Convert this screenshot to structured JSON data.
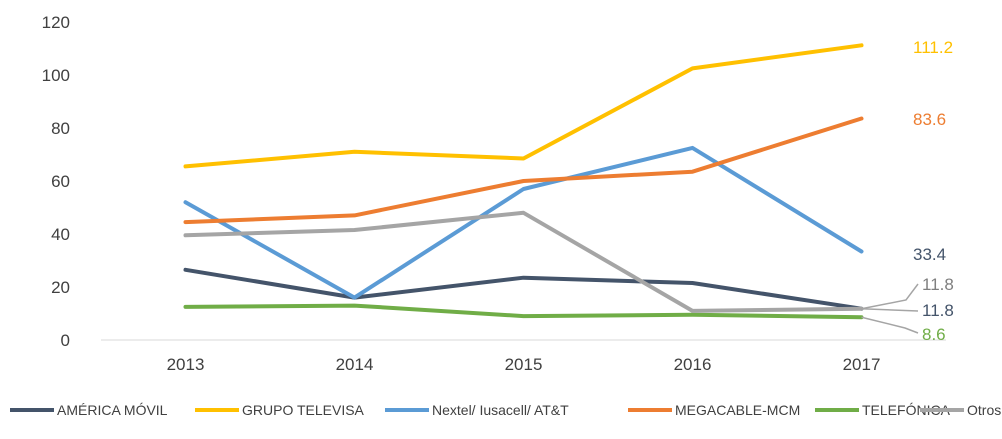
{
  "chart_data": {
    "type": "line",
    "title": "",
    "xlabel": "",
    "ylabel": "",
    "x": [
      "2013",
      "2014",
      "2015",
      "2016",
      "2017"
    ],
    "yticks": [
      0,
      20,
      40,
      60,
      80,
      100,
      120
    ],
    "ylim": [
      0,
      120
    ],
    "grid": false,
    "legend_position": "bottom",
    "series": [
      {
        "name": "AMÉRICA MÓVIL",
        "color": "#44546A",
        "values": [
          26.5,
          16,
          23.5,
          21.5,
          11.8
        ],
        "end_label": "11.8",
        "end_label_color": "#44546A"
      },
      {
        "name": "GRUPO TELEVISA",
        "color": "#FFC000",
        "values": [
          65.5,
          71,
          68.5,
          102.5,
          111.2
        ],
        "end_label": "111.2",
        "end_label_color": "#FFC000"
      },
      {
        "name": "Nextel/ Iusacell/ AT&T",
        "color": "#5B9BD5",
        "values": [
          52,
          16,
          57,
          72.5,
          33.4
        ],
        "end_label": "33.4",
        "end_label_color": "#44546A"
      },
      {
        "name": "MEGACABLE-MCM",
        "color": "#ED7D31",
        "values": [
          44.5,
          47,
          60,
          63.5,
          83.6
        ],
        "end_label": "83.6",
        "end_label_color": "#ED7D31"
      },
      {
        "name": "TELEFÓNICA",
        "color": "#70AD47",
        "values": [
          12.5,
          13,
          9,
          9.5,
          8.6
        ],
        "end_label": "8.6",
        "end_label_color": "#70AD47"
      },
      {
        "name": "Otros",
        "color": "#A5A5A5",
        "values": [
          39.5,
          41.5,
          48,
          11,
          11.8
        ],
        "end_label": "11.8",
        "end_label_color": "#7F7F7F"
      }
    ]
  }
}
